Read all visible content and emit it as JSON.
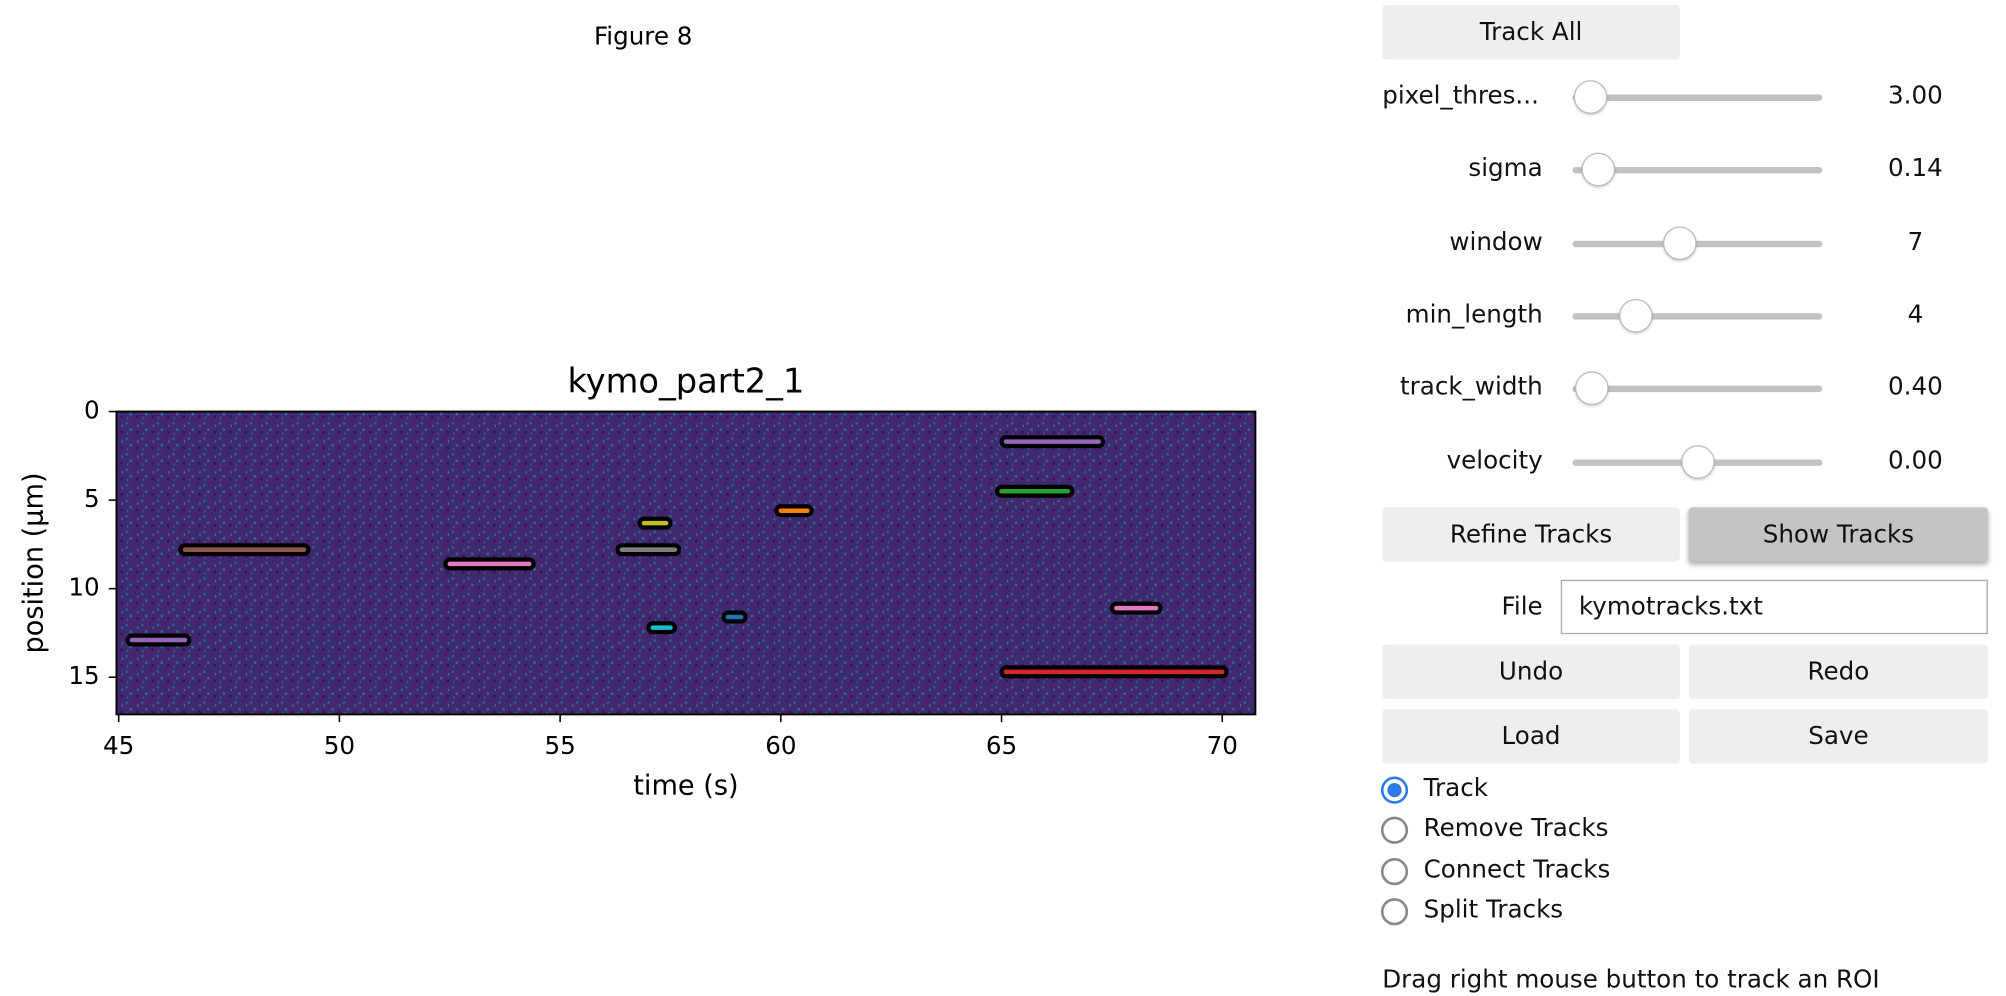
{
  "figure_label": "Figure 8",
  "chart_data": {
    "type": "kymograph",
    "title": "kymo_part2_1",
    "xlabel": "time (s)",
    "ylabel": "position (μm)",
    "xlim": [
      44.95,
      70.75
    ],
    "ylim": [
      0,
      17.1
    ],
    "y_inverted": true,
    "xticks": [
      45,
      50,
      55,
      60,
      65,
      70
    ],
    "yticks": [
      0,
      5,
      10,
      15
    ],
    "series": [
      {
        "color": "#9467bd",
        "x": [
          45.3,
          46.5
        ],
        "values": [
          12.9,
          12.9
        ]
      },
      {
        "color": "#8c564b",
        "x": [
          46.5,
          49.2
        ],
        "values": [
          7.8,
          7.8
        ]
      },
      {
        "color": "#e377c2",
        "x": [
          52.5,
          54.3
        ],
        "values": [
          8.6,
          8.6
        ]
      },
      {
        "color": "#7f7f7f",
        "x": [
          56.4,
          57.6
        ],
        "values": [
          7.8,
          7.8
        ]
      },
      {
        "color": "#bcbd22",
        "x": [
          56.9,
          57.4
        ],
        "values": [
          6.3,
          6.3
        ]
      },
      {
        "color": "#17becf",
        "x": [
          57.1,
          57.5
        ],
        "values": [
          12.2,
          12.2
        ]
      },
      {
        "color": "#1f77b4",
        "x": [
          58.8,
          59.1
        ],
        "values": [
          11.6,
          11.6
        ]
      },
      {
        "color": "#ff7f0e",
        "x": [
          60.0,
          60.6
        ],
        "values": [
          5.6,
          5.6
        ]
      },
      {
        "color": "#9467bd",
        "x": [
          65.1,
          67.2
        ],
        "values": [
          1.7,
          1.7
        ]
      },
      {
        "color": "#2ca02c",
        "x": [
          65.0,
          66.5
        ],
        "values": [
          4.5,
          4.5
        ]
      },
      {
        "color": "#e377c2",
        "x": [
          67.6,
          68.5
        ],
        "values": [
          11.1,
          11.1
        ]
      },
      {
        "color": "#d62728",
        "x": [
          65.1,
          70.0
        ],
        "values": [
          14.7,
          14.7
        ]
      }
    ]
  },
  "controls": {
    "track_all": "Track All",
    "sliders": [
      {
        "label": "pixel_thres...",
        "value": "3.00"
      },
      {
        "label": "sigma",
        "value": "0.14"
      },
      {
        "label": "window",
        "value": "7"
      },
      {
        "label": "min_length",
        "value": "4"
      },
      {
        "label": "track_width",
        "value": "0.40"
      },
      {
        "label": "velocity",
        "value": "0.00"
      }
    ],
    "refine_tracks": "Refine Tracks",
    "show_tracks": "Show Tracks",
    "file_label": "File",
    "file_value": "kymotracks.txt",
    "undo": "Undo",
    "redo": "Redo",
    "load": "Load",
    "save": "Save",
    "modes": [
      "Track",
      "Remove Tracks",
      "Connect Tracks",
      "Split Tracks"
    ],
    "hint": "Drag right mouse button to track an ROI"
  }
}
